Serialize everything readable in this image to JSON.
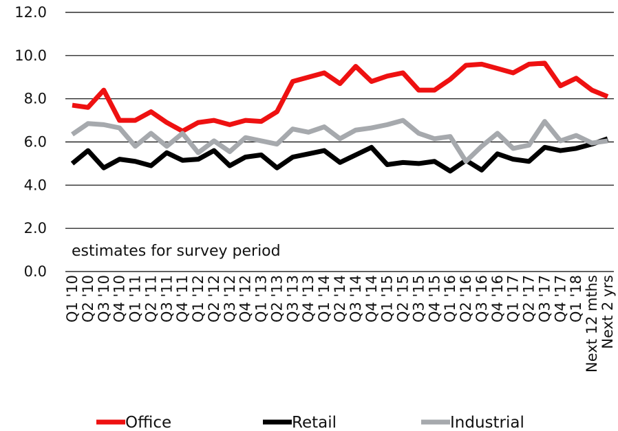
{
  "chart_data": {
    "type": "line",
    "annotation": "estimates for survey period",
    "categories": [
      "Q1 '10",
      "Q2 '10",
      "Q3 '10",
      "Q4 '10",
      "Q1 '11",
      "Q2 '11",
      "Q3 '11",
      "Q4 '11",
      "Q1 '12",
      "Q2 '12",
      "Q3 '12",
      "Q4 '12",
      "Q1 '13",
      "Q2 '13",
      "Q3 '13",
      "Q4 '13",
      "Q1 '14",
      "Q2 '14",
      "Q3 '14",
      "Q4 '14",
      "Q1 '15",
      "Q2 '15",
      "Q3 '15",
      "Q4 '15",
      "Q1 '16",
      "Q2 '16",
      "Q3 '16",
      "Q4 '16",
      "Q1 '17",
      "Q2 '17",
      "Q3 '17",
      "Q4 '17",
      "Q1 '18",
      "Next 12 mths",
      "Next 2 yrs"
    ],
    "series": [
      {
        "name": "Office",
        "color": "#ee1111",
        "values": [
          7.7,
          7.6,
          8.4,
          7.0,
          7.0,
          7.4,
          6.9,
          6.5,
          6.9,
          7.0,
          6.8,
          7.0,
          6.95,
          7.4,
          8.8,
          9.0,
          9.2,
          8.7,
          9.5,
          8.8,
          9.05,
          9.2,
          8.4,
          8.4,
          8.9,
          9.55,
          9.6,
          9.4,
          9.2,
          9.6,
          9.65,
          8.6,
          8.95,
          8.4,
          8.1
        ]
      },
      {
        "name": "Retail",
        "color": "#000000",
        "values": [
          5.0,
          5.6,
          4.8,
          5.2,
          5.1,
          4.9,
          5.5,
          5.15,
          5.2,
          5.6,
          4.9,
          5.3,
          5.4,
          4.8,
          5.3,
          5.45,
          5.6,
          5.05,
          5.4,
          5.75,
          4.95,
          5.05,
          5.0,
          5.1,
          4.65,
          5.15,
          4.7,
          5.45,
          5.2,
          5.1,
          5.75,
          5.6,
          5.7,
          5.9,
          6.15
        ]
      },
      {
        "name": "Industrial",
        "color": "#a6a9ad",
        "values": [
          6.35,
          6.85,
          6.8,
          6.65,
          5.8,
          6.4,
          5.8,
          6.4,
          5.5,
          6.05,
          5.55,
          6.2,
          6.05,
          5.9,
          6.6,
          6.45,
          6.7,
          6.15,
          6.55,
          6.65,
          6.8,
          7.0,
          6.4,
          6.15,
          6.25,
          5.1,
          5.8,
          6.4,
          5.7,
          5.85,
          6.95,
          6.05,
          6.3,
          5.95,
          6.05
        ]
      }
    ],
    "ylim": [
      0,
      12
    ],
    "yticks": [
      {
        "value": 0,
        "label": "0.0"
      },
      {
        "value": 2,
        "label": "2.0"
      },
      {
        "value": 4,
        "label": "4.0"
      },
      {
        "value": 6,
        "label": "6.0"
      },
      {
        "value": 8,
        "label": "8.0"
      },
      {
        "value": 10,
        "label": "10.0"
      },
      {
        "value": 12,
        "label": "12.0"
      }
    ],
    "grid": true,
    "legend": "bottom"
  }
}
